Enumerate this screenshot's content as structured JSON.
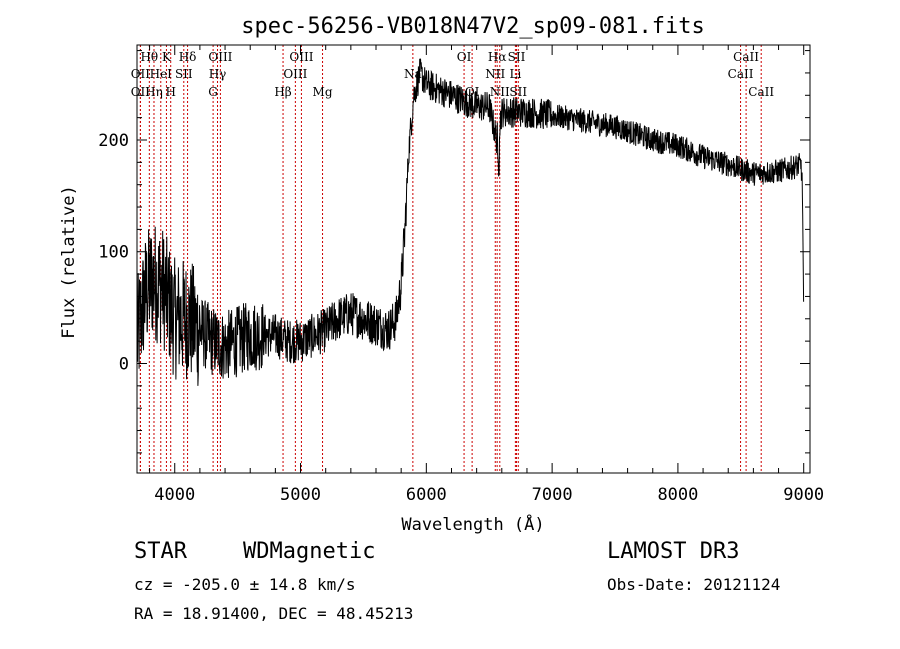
{
  "chart_data": {
    "type": "line",
    "title": "spec-56256-VB018N47V2_sp09-081.fits",
    "xlabel": "Wavelength (Å)",
    "ylabel": "Flux (relative)",
    "xlim": [
      3700,
      9050
    ],
    "ylim": [
      -98,
      285
    ],
    "xticks": [
      4000,
      5000,
      6000,
      7000,
      8000,
      9000
    ],
    "yticks": [
      0,
      100,
      200
    ],
    "series": [
      {
        "name": "flux",
        "anchors_x": [
          3700,
          3760,
          3820,
          3900,
          4000,
          4100,
          4200,
          4300,
          4400,
          4500,
          4600,
          4700,
          4800,
          4900,
          5000,
          5100,
          5200,
          5300,
          5400,
          5500,
          5600,
          5700,
          5760,
          5800,
          5830,
          5860,
          5900,
          5950,
          6000,
          6100,
          6200,
          6300,
          6400,
          6500,
          6560,
          6600,
          6700,
          6800,
          7000,
          7200,
          7500,
          7800,
          8000,
          8200,
          8400,
          8600,
          8800,
          8900,
          8980,
          9000
        ],
        "anchors_y": [
          20,
          60,
          75,
          70,
          40,
          40,
          30,
          20,
          15,
          20,
          25,
          25,
          25,
          20,
          20,
          25,
          30,
          40,
          45,
          40,
          35,
          30,
          40,
          70,
          120,
          190,
          240,
          260,
          250,
          245,
          240,
          235,
          230,
          230,
          200,
          225,
          225,
          225,
          222,
          218,
          212,
          200,
          195,
          185,
          178,
          170,
          172,
          175,
          178,
          130
        ]
      }
    ],
    "line_groups": [
      {
        "name": "group-1",
        "lines": [
          {
            "label": "Hθ",
            "wave": 3798,
            "row": 1
          },
          {
            "label": "K",
            "wave": 3934,
            "row": 1
          },
          {
            "label": "Hδ",
            "wave": 4102,
            "row": 1
          },
          {
            "label": "OIII",
            "wave": 4363,
            "row": 1
          },
          {
            "label": "OIII",
            "wave": 5007,
            "row": 1
          },
          {
            "label": "OI",
            "wave": 6300,
            "row": 1
          },
          {
            "label": "Hα",
            "wave": 6563,
            "row": 1
          },
          {
            "label": "SII",
            "wave": 6717,
            "row": 1
          },
          {
            "label": "CaII",
            "wave": 8542,
            "row": 1
          }
        ]
      },
      {
        "name": "group-2",
        "lines": [
          {
            "label": "OII",
            "wave": 3727,
            "row": 2
          },
          {
            "label": "HeI",
            "wave": 3889,
            "row": 2
          },
          {
            "label": "SII",
            "wave": 4072,
            "row": 2
          },
          {
            "label": "Hγ",
            "wave": 4340,
            "row": 2
          },
          {
            "label": "OIII",
            "wave": 4959,
            "row": 2
          },
          {
            "label": "Na",
            "wave": 5893,
            "row": 2
          },
          {
            "label": "NII",
            "wave": 6548,
            "row": 2
          },
          {
            "label": "Li",
            "wave": 6708,
            "row": 2
          },
          {
            "label": "CaII",
            "wave": 8498,
            "row": 2
          }
        ]
      },
      {
        "name": "group-3",
        "lines": [
          {
            "label": "OII",
            "wave": 3727,
            "row": 3
          },
          {
            "label": "Hη",
            "wave": 3835,
            "row": 3
          },
          {
            "label": "H",
            "wave": 3968,
            "row": 3
          },
          {
            "label": "G",
            "wave": 4305,
            "row": 3
          },
          {
            "label": "Hβ",
            "wave": 4861,
            "row": 3
          },
          {
            "label": "Mg",
            "wave": 5175,
            "row": 3
          },
          {
            "label": "OI",
            "wave": 6364,
            "row": 3
          },
          {
            "label": "NII",
            "wave": 6584,
            "row": 3
          },
          {
            "label": "SII",
            "wave": 6731,
            "row": 3
          },
          {
            "label": "CaII",
            "wave": 8662,
            "row": 3
          }
        ]
      }
    ]
  },
  "info": {
    "type_label": "STAR",
    "subclass": "WDMagnetic",
    "survey": "LAMOST DR3",
    "cz": "cz = -205.0 ± 14.8 km/s",
    "obs_date": "Obs-Date: 20121124",
    "radec": "RA =  18.91400, DEC =  48.45213"
  }
}
